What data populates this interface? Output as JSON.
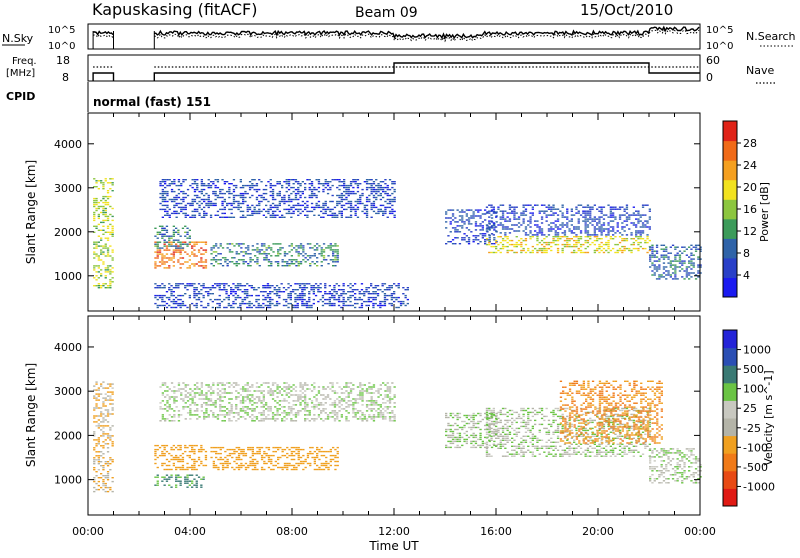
{
  "header": {
    "station": "Kapuskasing (fitACF)",
    "beam": "Beam 09",
    "date": "15/Oct/2010"
  },
  "top_panels": {
    "nsky_label": "N.Sky",
    "nsky_ticks": [
      "10^5",
      "10^0"
    ],
    "nsearch_label": "N.Search",
    "nsearch_ticks": [
      "10^5",
      "10^0"
    ],
    "freq_label_1": "Freq.",
    "freq_label_2": "[MHz]",
    "freq_ticks": [
      "18",
      "8"
    ],
    "nave_label": "Nave",
    "nave_ticks": [
      "60",
      "0"
    ],
    "cpid_label": "CPID",
    "cpid_text": "normal (fast) 151"
  },
  "colors": {
    "power_scale": [
      "#1b1bf0",
      "#2940c8",
      "#2f63a8",
      "#3c9b5a",
      "#8cc63f",
      "#f2e21f",
      "#f5a020",
      "#f06a18",
      "#e02318"
    ],
    "velocity_scale": [
      "#2424d8",
      "#2b4fb4",
      "#3a7a74",
      "#6ac444",
      "#c8c8c0",
      "#b4b4a8",
      "#f0a020",
      "#f07a18",
      "#e84a14",
      "#e01a14"
    ]
  },
  "chart_data": [
    {
      "type": "heatmap",
      "title": "Power",
      "ylabel": "Slant Range [km]",
      "xlabel": "Time UT",
      "x_ticks": [
        "00:00",
        "04:00",
        "08:00",
        "12:00",
        "16:00",
        "20:00",
        "00:00"
      ],
      "y_ticks": [
        "1000",
        "2000",
        "3000",
        "4000"
      ],
      "xlim": [
        0,
        24
      ],
      "ylim": [
        200,
        4700
      ],
      "colorbar": {
        "label": "Power [dB]",
        "ticks": [
          "28",
          "24",
          "20",
          "16",
          "12",
          "8",
          "4"
        ],
        "range": [
          0,
          30
        ]
      },
      "regions": [
        {
          "t": [
            0.2,
            1.0
          ],
          "r": [
            700,
            3200
          ],
          "v": 16
        },
        {
          "t": [
            2.6,
            4.6
          ],
          "r": [
            1150,
            1750
          ],
          "v": 24
        },
        {
          "t": [
            2.6,
            4.0
          ],
          "r": [
            1600,
            2100
          ],
          "v": 10
        },
        {
          "t": [
            2.8,
            12.0
          ],
          "r": [
            2300,
            3200
          ],
          "v": 6
        },
        {
          "t": [
            4.8,
            9.8
          ],
          "r": [
            1200,
            1700
          ],
          "v": 10
        },
        {
          "t": [
            2.6,
            12.5
          ],
          "r": [
            250,
            800
          ],
          "v": 6
        },
        {
          "t": [
            14.0,
            16.0
          ],
          "r": [
            1700,
            2500
          ],
          "v": 6
        },
        {
          "t": [
            15.6,
            22.0
          ],
          "r": [
            1500,
            1900
          ],
          "v": 18
        },
        {
          "t": [
            15.6,
            22.0
          ],
          "r": [
            1900,
            2600
          ],
          "v": 6
        },
        {
          "t": [
            22.0,
            24.0
          ],
          "r": [
            900,
            1700
          ],
          "v": 8
        }
      ]
    },
    {
      "type": "heatmap",
      "title": "Velocity",
      "ylabel": "Slant Range [km]",
      "xlabel": "Time UT",
      "x_ticks": [
        "00:00",
        "04:00",
        "08:00",
        "12:00",
        "16:00",
        "20:00",
        "00:00"
      ],
      "y_ticks": [
        "1000",
        "2000",
        "3000",
        "4000"
      ],
      "xlim": [
        0,
        24
      ],
      "ylim": [
        200,
        4700
      ],
      "colorbar": {
        "label": "Velocity [m s^-1]",
        "ticks": [
          "1000",
          "500",
          "100",
          "25",
          "-25",
          "-100",
          "-500",
          "-1000"
        ],
        "range": [
          -1200,
          1200
        ]
      },
      "regions": [
        {
          "t": [
            0.2,
            1.0
          ],
          "r": [
            700,
            3200
          ],
          "v": -100
        },
        {
          "t": [
            2.6,
            4.6
          ],
          "r": [
            1200,
            1750
          ],
          "v": -300
        },
        {
          "t": [
            2.6,
            4.5
          ],
          "r": [
            800,
            1100
          ],
          "v": 150
        },
        {
          "t": [
            2.8,
            12.0
          ],
          "r": [
            2300,
            3200
          ],
          "v": 0
        },
        {
          "t": [
            4.8,
            9.8
          ],
          "r": [
            1200,
            1700
          ],
          "v": -200
        },
        {
          "t": [
            14.0,
            16.0
          ],
          "r": [
            1700,
            2500
          ],
          "v": 0
        },
        {
          "t": [
            15.6,
            22.0
          ],
          "r": [
            1500,
            2600
          ],
          "v": 0
        },
        {
          "t": [
            18.5,
            22.5
          ],
          "r": [
            1800,
            3200
          ],
          "v": -500
        },
        {
          "t": [
            22.0,
            24.0
          ],
          "r": [
            900,
            1700
          ],
          "v": 0
        }
      ]
    }
  ]
}
